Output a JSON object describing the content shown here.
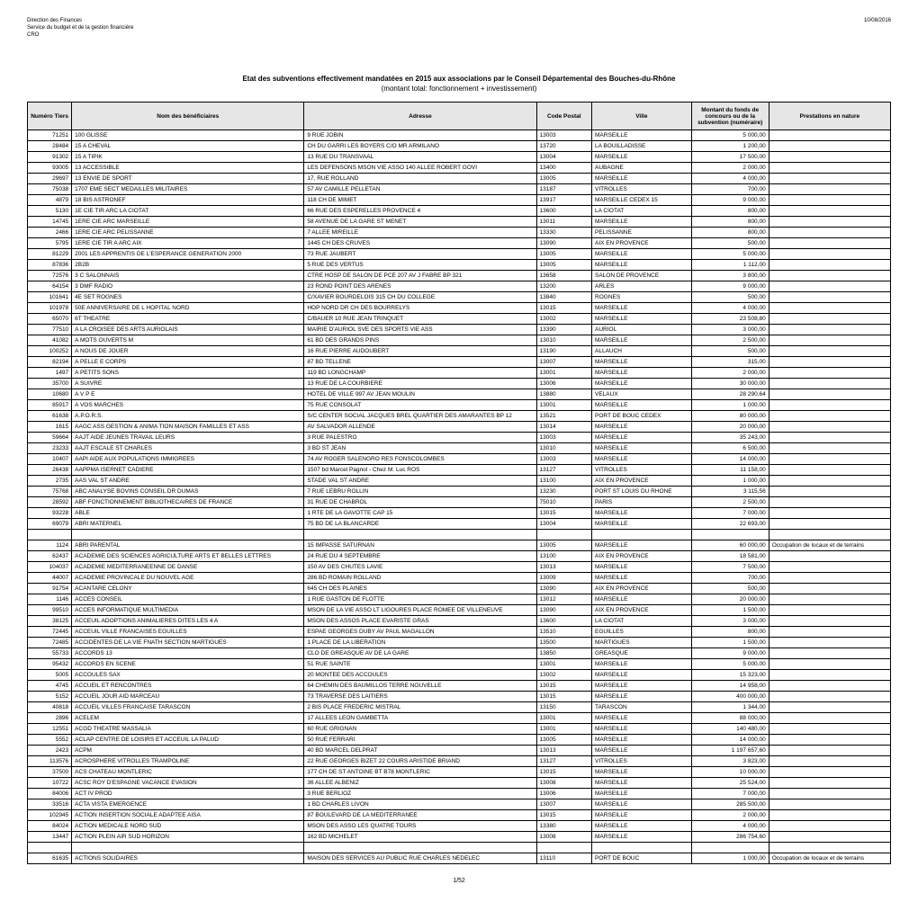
{
  "header": {
    "line1": "Direction des Finances",
    "line2": "Service du budget et de la gestion financière",
    "line3": "CRO",
    "date": "10/08/2016"
  },
  "title": "Etat des subventions effectivement mandatées en 2015 aux associations par le Conseil Départemental des Bouches-du-Rhône",
  "subtitle": "(montant total: fonctionnement + investissement)",
  "columns": [
    "Numéro Tiers",
    "Nom des bénéficiaires",
    "Adresse",
    "Code Postal",
    "Ville",
    "Montant du fonds de concours ou de la subvention (numéraire)",
    "Prestations en nature"
  ],
  "rows": [
    [
      "71251",
      "100 GLISSE",
      "9 RUE JOBIN",
      "13003",
      "MARSEILLE",
      "5 000,00",
      ""
    ],
    [
      "28484",
      "15 A CHEVAL",
      "CH DU GARRI LES BOYERS C/O MR ARMILANO",
      "13720",
      "LA BOUILLADISSE",
      "1 200,00",
      ""
    ],
    [
      "91302",
      "15 A TIPIK",
      "13 RUE DU TRANSVAAL",
      "13004",
      "MARSEILLE",
      "17 500,00",
      ""
    ],
    [
      "93005",
      "13 ACCESSIBLE",
      "LES DEFENSONS MSON VIE ASSO 140 ALLEE ROBERT GOVI",
      "13400",
      "AUBAGNE",
      "2 000,00",
      ""
    ],
    [
      "29697",
      "13 ENVIE DE SPORT",
      "17, RUE ROLLAND",
      "13005",
      "MARSEILLE",
      "4 000,00",
      ""
    ],
    [
      "75038",
      "1707 EME SECT MEDAILLES MILITAIRES",
      "57 AV CAMILLE PELLETAN",
      "13187",
      "VITROLLES",
      "700,00",
      ""
    ],
    [
      "4879",
      "18 BIS ASTRONEF",
      "118 CH DE MIMET",
      "13917",
      "MARSEILLE CEDEX 15",
      "9 000,00",
      ""
    ],
    [
      "5130",
      "1E CIE TIR ARC LA CIOTAT",
      "66 RUE DES ESPERELLES PROVENCE 4",
      "13600",
      "LA CIOTAT",
      "800,00",
      ""
    ],
    [
      "14745",
      "1ERE CIE ARC MARSEILLE",
      "58 AVENUE DE LA GARE ST MENET",
      "13011",
      "MARSEILLE",
      "800,00",
      ""
    ],
    [
      "2466",
      "1ERE CIE ARC PELISSANNE",
      "7 ALLEE MIREILLE",
      "13330",
      "PELISSANNE",
      "800,00",
      ""
    ],
    [
      "5795",
      "1ERE CIE TIR A ARC AIX",
      "1445 CH DES CRUVES",
      "13090",
      "AIX EN PROVENCE",
      "500,00",
      ""
    ],
    [
      "81229",
      "2001 LES APPRENTIS DE L'ESPERANCE GENERATION 2000",
      "73 RUE JAUBERT",
      "13005",
      "MARSEILLE",
      "5 000,00",
      ""
    ],
    [
      "87836",
      "2B2B",
      "5 RUE DES VERTUS",
      "13005",
      "MARSEILLE",
      "1 112,00",
      ""
    ],
    [
      "72576",
      "3 C SALONNAIS",
      "CTRE HOSP DE SALON DE PCE 207 AV J FABRE BP 321",
      "13658",
      "SALON DE PROVENCE",
      "3 800,00",
      ""
    ],
    [
      "64154",
      "3 DMF RADIO",
      "23 ROND POINT DES ARENES",
      "13200",
      "ARLES",
      "9 000,00",
      ""
    ],
    [
      "101641",
      "4E SET ROGNES",
      "C/XAVIER BOURDELOIS 315 CH DU COLLEGE",
      "13840",
      "ROGNES",
      "500,00",
      ""
    ],
    [
      "101978",
      "50E ANNIVERSAIRE DE L HOPITAL NORD",
      "HOP NORD DR CH DES BOURRELYS",
      "13015",
      "MARSEILLE",
      "4 000,00",
      ""
    ],
    [
      "65070",
      "6T THEATRE",
      "C/BAUER 10 RUE JEAN TRINQUET",
      "13002",
      "MARSEILLE",
      "23 508,80",
      ""
    ],
    [
      "77510",
      "A LA CROISEE DES ARTS AURIOLAIS",
      "MAIRIE D'AURIOL SVE DES SPORTS VIE ASS",
      "13390",
      "AURIOL",
      "3 000,00",
      ""
    ],
    [
      "41082",
      "A MOTS OUVERTS M",
      "61 BD DES GRANDS PINS",
      "13010",
      "MARSEILLE",
      "2 500,00",
      ""
    ],
    [
      "100252",
      "A NOUS DE JOUER",
      "16 RUE PIERRE AUDOUBERT",
      "13190",
      "ALLAUCH",
      "500,00",
      ""
    ],
    [
      "82194",
      "A PELLE E CORPS",
      "87 BD TELLENE",
      "13007",
      "MARSEILLE",
      "315,00",
      ""
    ],
    [
      "1497",
      "A PETITS SONS",
      "119 BD LONGCHAMP",
      "13001",
      "MARSEILLE",
      "2 000,00",
      ""
    ],
    [
      "35700",
      "A SUIVRE",
      "13 RUE DE LA COURBIERE",
      "13006",
      "MARSEILLE",
      "30 000,00",
      ""
    ],
    [
      "10680",
      "A V P E",
      "HOTEL DE VILLE 997 AV JEAN MOULIN",
      "13880",
      "VELAUX",
      "28 290,64",
      ""
    ],
    [
      "85917",
      "A VOS MARCHES",
      "75 RUE CONSOLAT",
      "13001",
      "MARSEILLE",
      "1 000,00",
      ""
    ],
    [
      "61638",
      "A.P.O.R.S.",
      "S/C CENTER SOCIAL JACQUES BREL QUARTIER DES AMARANTES BP 12",
      "13521",
      "PORT DE BOUC CEDEX",
      "80 000,00",
      ""
    ],
    [
      "1615",
      "AAGC ASS GESTION & ANIMA TION MAISON FAMILLES ET ASS",
      "AV SALVADOR ALLENDE",
      "13014",
      "MARSEILLE",
      "20 000,00",
      ""
    ],
    [
      "59664",
      "AAJT AIDE JEUNES TRAVAIL LEURS",
      "3 RUE PALESTRO",
      "13003",
      "MARSEILLE",
      "35 243,00",
      ""
    ],
    [
      "23233",
      "AAJT ESCALE ST CHARLES",
      "3 BD ST JEAN",
      "13010",
      "MARSEILLE",
      "6 500,00",
      ""
    ],
    [
      "10407",
      "AAPI AIDE AUX POPULATIONS IMMIGREES",
      "74 AV ROGER SALENGRO RES FONSCOLOMBES",
      "13003",
      "MARSEILLE",
      "14 000,00",
      ""
    ],
    [
      "26438",
      "AAPPMA ISERNET CADIERE",
      "1507 bd Marcel Pagnol - Chez M. Luc ROS",
      "13127",
      "VITROLLES",
      "11 158,00",
      ""
    ],
    [
      "2735",
      "AAS VAL ST ANDRE",
      "STADE VAL ST ANDRE",
      "13100",
      "AIX EN PROVENCE",
      "1 000,00",
      ""
    ],
    [
      "75768",
      "ABC ANALYSE BOVINS CONSEIL DR DUMAS",
      "7 RUE LEBRU ROLLIN",
      "13230",
      "PORT ST LOUIS DU RHONE",
      "3 115,56",
      ""
    ],
    [
      "28592",
      "ABF FONCTIONNEMENT BIBLIOTHECAIRES DE FRANCE",
      "31 RUE DE CHABROL",
      "75010",
      "PARIS",
      "2 500,00",
      ""
    ],
    [
      "93228",
      "ABLE",
      "1 RTE DE LA GAVOTTE CAP 15",
      "13015",
      "MARSEILLE",
      "7 000,00",
      ""
    ],
    [
      "69079",
      "ABRI MATERNEL",
      "75 BD DE LA BLANCARDE",
      "13004",
      "MARSEILLE",
      "22 693,00",
      ""
    ],
    [
      "",
      "",
      "",
      "",
      "",
      "",
      ""
    ],
    [
      "1124",
      "ABRI PARENTAL",
      "15 IMPASSE SATURNAN",
      "13005",
      "MARSEILLE",
      "60 000,00",
      "Occupation de locaux et de terrains"
    ],
    [
      "62437",
      "ACADEMIE DES SCIENCES AGRICULTURE ARTS ET BELLES LETTRES",
      "24 RUE DU 4 SEPTEMBRE",
      "13100",
      "AIX EN PROVENCE",
      "18 581,00",
      ""
    ],
    [
      "104037",
      "ACADEMIE MEDITERRANEENNE DE DANSE",
      "150 AV DES CHUTES LAVIE",
      "13013",
      "MARSEILLE",
      "7 500,00",
      ""
    ],
    [
      "44007",
      "ACADEMIE PROVINCALE DU NOUVEL AGE",
      "286 BD ROMAIN ROLLAND",
      "13009",
      "MARSEILLE",
      "700,00",
      ""
    ],
    [
      "91754",
      "ACANTARE CELONY",
      "645 CH DES PLAINES",
      "13090",
      "AIX EN PROVENCE",
      "500,00",
      ""
    ],
    [
      "1146",
      "ACCES CONSEIL",
      "1 RUE GASTON DE FLOTTE",
      "13012",
      "MARSEILLE",
      "20 000,00",
      ""
    ],
    [
      "99510",
      "ACCES INFORMATIQUE MULTIMEDIA",
      "MSON DE LA VIE ASSO LT LIGOURES PLACE ROMEE DE VILLENEUVE",
      "13090",
      "AIX EN PROVENCE",
      "1 500,00",
      ""
    ],
    [
      "38125",
      "ACCEUIL ADOPTIONS ANIMALIERES DITES LES 4 A",
      "MSON DES ASSOS PLACE EVARISTE GRAS",
      "13600",
      "LA CIOTAT",
      "3 000,00",
      ""
    ],
    [
      "72445",
      "ACCEUIL VILLE FRANCAISES EGUILLES",
      "ESPAE GEORGES DUBY AV PAUL MAGALLON",
      "13510",
      "EGUILLES",
      "800,00",
      ""
    ],
    [
      "72485",
      "ACCIDENTES DE LA VIE FNATH SECTION MARTIGUES",
      "1 PLACE DE LA LIBERATION",
      "13500",
      "MARTIGUES",
      "1 500,00",
      ""
    ],
    [
      "55733",
      "ACCORDS 13",
      "CLO DE GREASQUE AV DE LA GARE",
      "13850",
      "GREASQUE",
      "9 000,00",
      ""
    ],
    [
      "95432",
      "ACCORDS EN SCENE",
      "51 RUE SAINTE",
      "13001",
      "MARSEILLE",
      "5 000,00",
      ""
    ],
    [
      "5005",
      "ACCOULES SAX",
      "20 MONTEE DES ACCOULES",
      "13002",
      "MARSEILLE",
      "15 323,00",
      ""
    ],
    [
      "4745",
      "ACCUEIL  ET RENCONTRES",
      "64 CHEMIN DES BAUMILLOS TERRE NOUVELLE",
      "13015",
      "MARSEILLE",
      "14 958,00",
      ""
    ],
    [
      "5152",
      "ACCUEIL JOUR AID MARCEAU",
      "73 TRAVERSE DES LAITIERS",
      "13015",
      "MARSEILLE",
      "400 000,00",
      ""
    ],
    [
      "40818",
      "ACCUEIL VILLES FRANCAISE TARASCON",
      "2 BIS PLACE FREDERIC MISTRAL",
      "13150",
      "TARASCON",
      "1 344,00",
      ""
    ],
    [
      "2896",
      "ACELEM",
      "17 ALLEES LEON GAMBETTA",
      "13001",
      "MARSEILLE",
      "88 000,00",
      ""
    ],
    [
      "12551",
      "ACGD THEATRE MASSALIA",
      "60 RUE GRIGNAN",
      "13001",
      "MARSEILLE",
      "140 480,00",
      ""
    ],
    [
      "5552",
      "ACLAP CENTRE DE LOISIRS ET ACCEUIL LA PALUD",
      "50 RUE FERRARI",
      "13005",
      "MARSEILLE",
      "14 000,00",
      ""
    ],
    [
      "2423",
      "ACPM",
      "40 BD MARCEL DELPRAT",
      "13013",
      "MARSEILLE",
      "1 197 657,60",
      ""
    ],
    [
      "113576",
      "ACROSPHERE VITROLLES TRAMPOLINE",
      "22 RUE GEORGES BIZET 22 COURS ARISTIDE BRIAND",
      "13127",
      "VITROLLES",
      "3 823,00",
      ""
    ],
    [
      "37500",
      "ACS CHATEAU MONTLERIC",
      "177 CH DE ST ANTOINE BT B78 MONTLERIC",
      "13015",
      "MARSEILLE",
      "10 000,00",
      ""
    ],
    [
      "10722",
      "ACSC ROY D'ESPAGNE VACANCE EVASION",
      "36 ALLEE ALBENIZ",
      "13008",
      "MARSEILLE",
      "25 524,00",
      ""
    ],
    [
      "84006",
      "ACT IV PROD",
      "3 RUE BERLIOZ",
      "13006",
      "MARSEILLE",
      "7 000,00",
      ""
    ],
    [
      "33516",
      "ACTA VISTA EMERGENCE",
      "1 BD CHARLES LIVON",
      "13007",
      "MARSEILLE",
      "285 500,00",
      ""
    ],
    [
      "102945",
      "ACTION INSERTION SOCIALE ADAPTEE AISA",
      "87 BOULEVARD DE LA MEDITERRANEE",
      "13015",
      "MARSEILLE",
      "2 000,00",
      ""
    ],
    [
      "84024",
      "ACTION MEDICALE NORD SUD",
      "MSON DES ASSO LES QUATRE TOURS",
      "13380",
      "MARSEILLE",
      "4 000,00",
      ""
    ],
    [
      "13447",
      "ACTION PLEIN AIR SUD HORIZON",
      "162 BD MICHELET",
      "13008",
      "MARSEILLE",
      "286 754,60",
      ""
    ],
    [
      "",
      "",
      "",
      "",
      "",
      "",
      ""
    ],
    [
      "61635",
      "ACTIONS SOLIDAIRES",
      "MAISON DES SERVICES AU PUBLIC RUE CHARLES NEDELEC",
      "13110",
      "PORT DE BOUC",
      "1 000,00",
      "Occupation de locaux et de terrains"
    ]
  ],
  "page": "1/52"
}
